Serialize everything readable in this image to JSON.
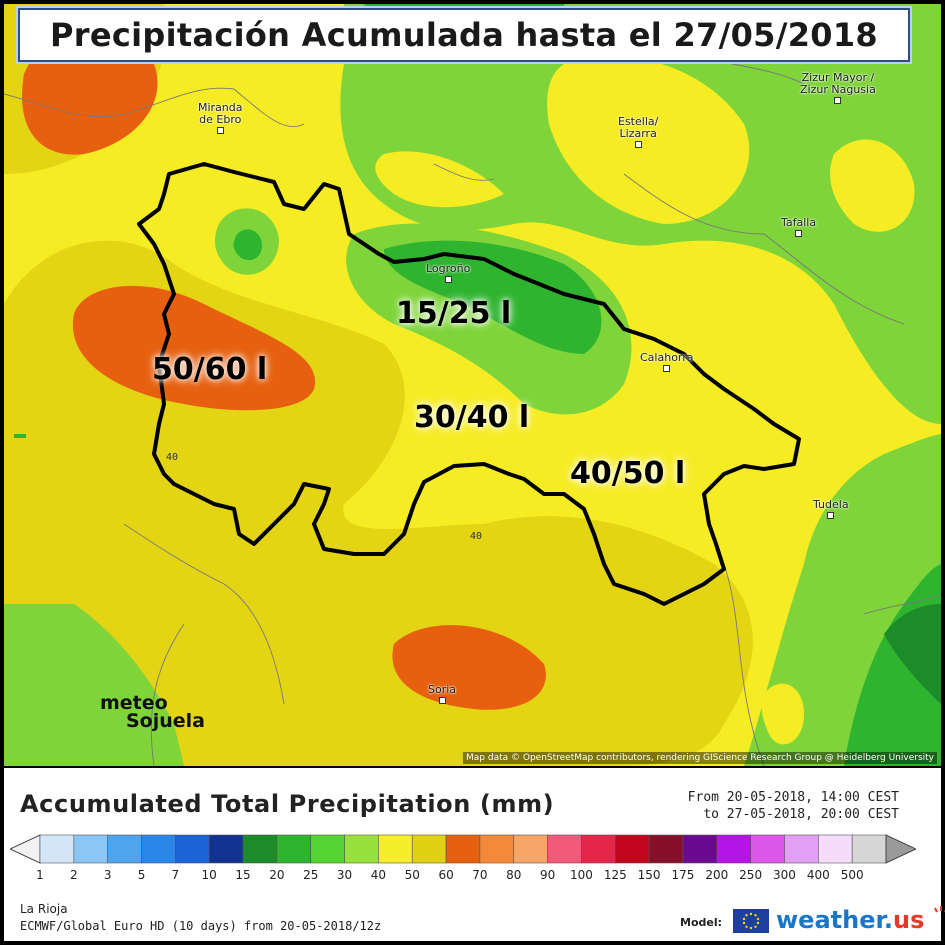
{
  "title": "Precipitación Acumulada hasta el 27/05/2018",
  "map": {
    "places": [
      {
        "name": "Miranda\nde Ebro",
        "key": "miranda"
      },
      {
        "name": "Zizur Mayor /\nZizur Nagusia",
        "key": "zizur"
      },
      {
        "name": "Estella/\nLizarra",
        "key": "estella"
      },
      {
        "name": "Tafalla",
        "key": "tafalla"
      },
      {
        "name": "Logroño",
        "key": "logrono"
      },
      {
        "name": "Calahorra",
        "key": "calahorra"
      },
      {
        "name": "Tudela",
        "key": "tudela"
      },
      {
        "name": "Soria",
        "key": "soria"
      }
    ],
    "ranges": [
      {
        "text": "15/25 l",
        "key": "north"
      },
      {
        "text": "50/60 l",
        "key": "west"
      },
      {
        "text": "30/40 l",
        "key": "center"
      },
      {
        "text": "40/50 l",
        "key": "east"
      }
    ],
    "contour_labels": [
      "40",
      "40"
    ],
    "credit": "Map data © OpenStreetMap contributors, rendering GIScience Research Group @ Heidelberg University",
    "watermark": {
      "line1": "meteo",
      "line2": "Sojuela"
    }
  },
  "legend": {
    "title": "Accumulated Total Precipitation (mm)",
    "from": "From 20-05-2018, 14:00 CEST",
    "to": "to 27-05-2018, 20:00 CEST",
    "ticks": [
      "1",
      "2",
      "3",
      "5",
      "7",
      "10",
      "15",
      "20",
      "25",
      "30",
      "40",
      "50",
      "60",
      "70",
      "80",
      "90",
      "100",
      "125",
      "150",
      "175",
      "200",
      "250",
      "300",
      "400",
      "500"
    ],
    "colors": [
      "#d3e6f8",
      "#8cc6f4",
      "#4fa4ee",
      "#2a86e8",
      "#1c63d8",
      "#12328f",
      "#1c8b2a",
      "#2fb42f",
      "#55d432",
      "#9ae03c",
      "#f6ee2a",
      "#e1d115",
      "#e66010",
      "#f5893a",
      "#f6a668",
      "#f25a7a",
      "#e6254a",
      "#c0051c",
      "#86102a",
      "#6a0a90",
      "#b414e6",
      "#dc56ea",
      "#e2a0f4",
      "#f4dcfa",
      "#d6d6d6"
    ],
    "region": "La Rioja",
    "run": "ECMWF/Global Euro HD (10 days) from 20-05-2018/12z",
    "model_label": "Model:",
    "brand": "weather.",
    "brand_suffix": "us"
  }
}
